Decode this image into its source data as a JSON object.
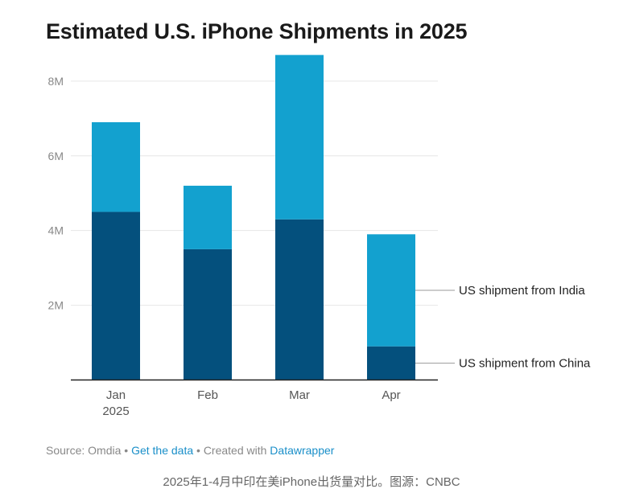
{
  "chart_data": {
    "type": "bar",
    "stacked": true,
    "title": "Estimated U.S. iPhone Shipments in 2025",
    "categories": [
      "Jan",
      "Feb",
      "Mar",
      "Apr"
    ],
    "category_sublabels": [
      "2025",
      "",
      "",
      ""
    ],
    "series": [
      {
        "name": "US shipment from China",
        "color": "#04507d",
        "values": [
          4.5,
          3.5,
          4.3,
          0.9
        ]
      },
      {
        "name": "US shipment from India",
        "color": "#13a1cf",
        "values": [
          2.4,
          1.7,
          4.4,
          3.0
        ]
      }
    ],
    "y_ticks": [
      2,
      4,
      6,
      8
    ],
    "y_tick_labels": [
      "2M",
      "4M",
      "6M",
      "8M"
    ],
    "ylim": [
      0,
      8.6
    ],
    "ylabel": "",
    "xlabel": "",
    "grid": true,
    "legend": "inline-right"
  },
  "footer": {
    "source_label": "Source: Omdia",
    "separator": "•",
    "get_data_link": "Get the data",
    "created_with": "Created with",
    "datawrapper_link": "Datawrapper"
  },
  "caption": "2025年1-4月中印在美iPhone出货量对比。图源：CNBC"
}
